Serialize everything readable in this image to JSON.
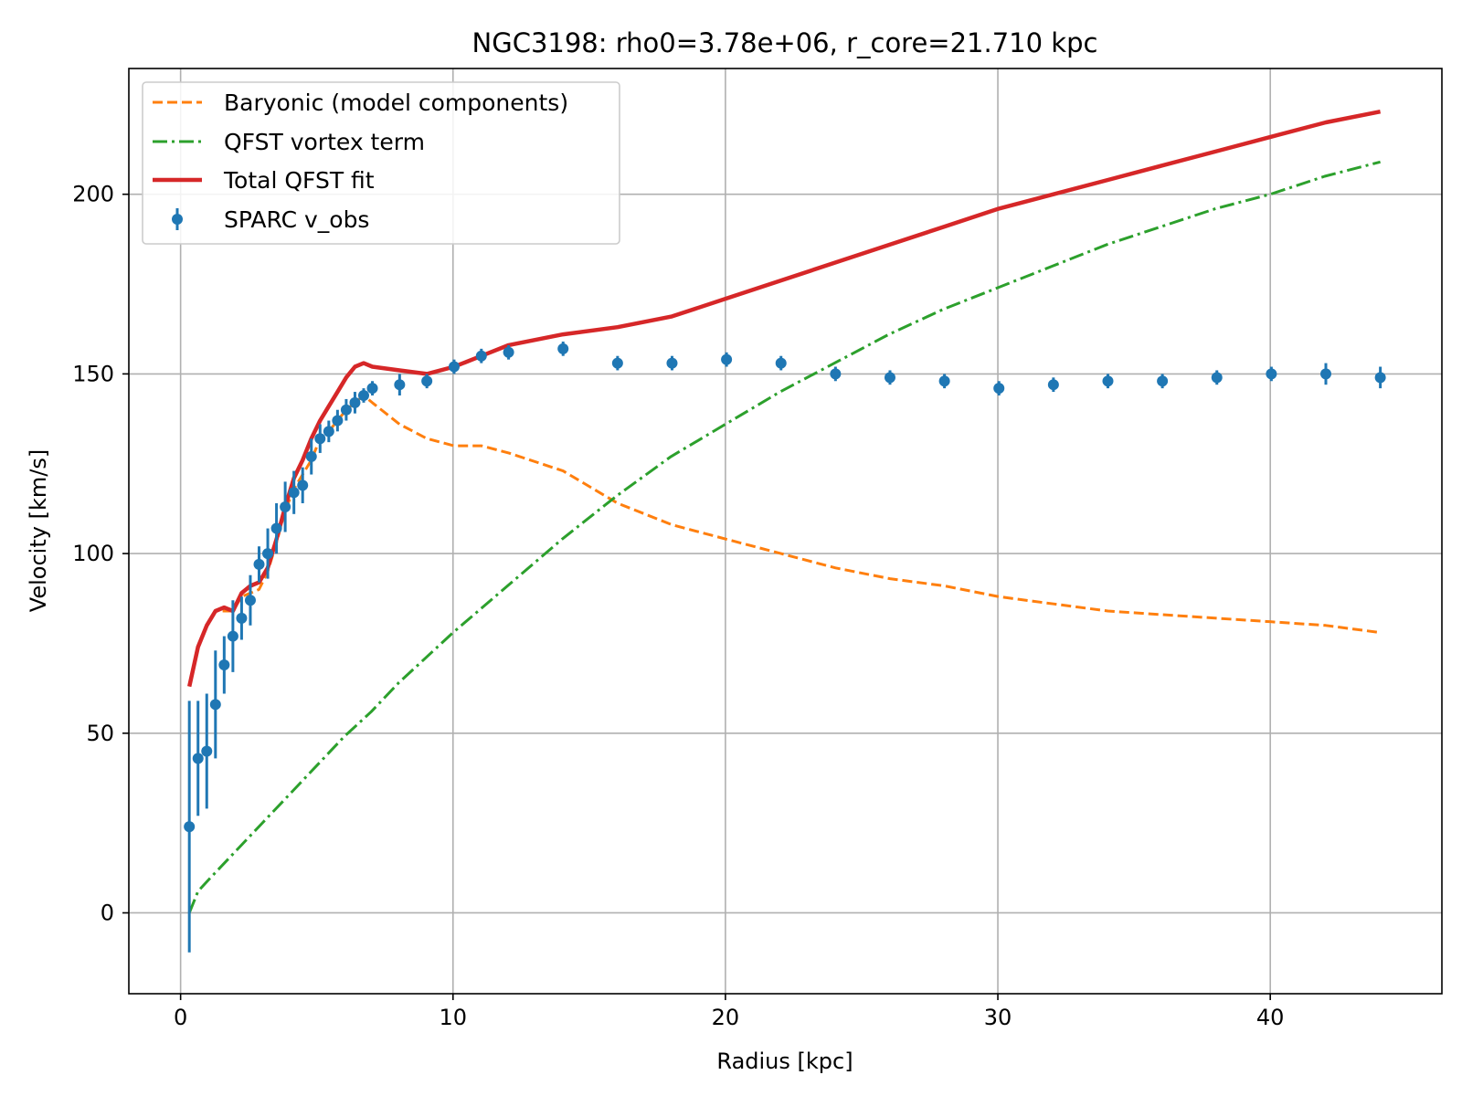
{
  "chart_data": {
    "type": "line",
    "title": "NGC3198: rho0=3.78e+06, r_core=21.710 kpc",
    "xlabel": "Radius [kpc]",
    "ylabel": "Velocity [km/s]",
    "xlim": [
      -1.9,
      46.3
    ],
    "ylim": [
      -22.5,
      235.0
    ],
    "xticks": [
      0,
      10,
      20,
      30,
      40
    ],
    "yticks": [
      0,
      50,
      100,
      150,
      200
    ],
    "grid": true,
    "legend_position": "top-left",
    "colors": {
      "baryonic": "#ff7f0e",
      "vortex": "#2ca02c",
      "total": "#d62728",
      "observed": "#1f77b4",
      "grid": "#b0b0b0"
    },
    "series": [
      {
        "name": "Baryonic (model components)",
        "style": "dashed",
        "x": [
          0.32,
          0.64,
          0.96,
          1.28,
          1.6,
          1.92,
          2.24,
          2.56,
          2.88,
          3.2,
          3.52,
          3.84,
          4.16,
          4.48,
          4.8,
          5.12,
          5.44,
          5.76,
          6.08,
          6.4,
          6.72,
          7.04,
          8.04,
          9.04,
          10.04,
          11.04,
          12.04,
          14.04,
          16.04,
          18.04,
          20.04,
          22.04,
          24.04,
          26.04,
          28.04,
          30.04,
          32.04,
          34.04,
          36.04,
          38.04,
          40.04,
          42.04,
          44.04
        ],
        "y": [
          63,
          74,
          80,
          84,
          84,
          84,
          88,
          89,
          90,
          95,
          103,
          112,
          118,
          122,
          126,
          132,
          134,
          137,
          140,
          142,
          144,
          142,
          136,
          132,
          130,
          130,
          128,
          123,
          114,
          108,
          104,
          100,
          96,
          93,
          91,
          88,
          86,
          84,
          83,
          82,
          81,
          80,
          78
        ]
      },
      {
        "name": "QFST vortex term",
        "style": "dashdot",
        "x": [
          0.32,
          0.64,
          1,
          2,
          3,
          4,
          5,
          6,
          7,
          8,
          9,
          10,
          12,
          14,
          16,
          18,
          20,
          22,
          24,
          26,
          28,
          30,
          32,
          34,
          36,
          38,
          40,
          42,
          44.04
        ],
        "y": [
          0,
          6,
          9,
          17,
          25,
          33,
          41,
          49,
          56,
          64,
          71,
          78,
          91,
          104,
          116,
          127,
          136,
          145,
          153,
          161,
          168,
          174,
          180,
          186,
          191,
          196,
          200,
          205,
          209
        ]
      },
      {
        "name": "Total QFST fit",
        "style": "solid",
        "x": [
          0.32,
          0.64,
          0.96,
          1.28,
          1.6,
          1.92,
          2.24,
          2.56,
          2.88,
          3.2,
          3.52,
          3.84,
          4.16,
          4.48,
          4.8,
          5.12,
          5.44,
          5.76,
          6.08,
          6.4,
          6.72,
          7.04,
          8.04,
          9.04,
          10.04,
          11.04,
          12.04,
          14.04,
          16.04,
          18.04,
          20.04,
          22.04,
          24.04,
          26.04,
          28.04,
          30.04,
          32.04,
          34.04,
          36.04,
          38.04,
          40.04,
          42.04,
          44.04
        ],
        "y": [
          63,
          74,
          80,
          84,
          85,
          84,
          89,
          91,
          92,
          96,
          104,
          113,
          121,
          126,
          132,
          137,
          141,
          145,
          149,
          152,
          153,
          152,
          151,
          150,
          152,
          155,
          158,
          161,
          163,
          166,
          171,
          176,
          181,
          186,
          191,
          196,
          200,
          204,
          208,
          212,
          216,
          220,
          223
        ]
      },
      {
        "name": "SPARC v_obs",
        "style": "errorbar",
        "x": [
          0.32,
          0.64,
          0.96,
          1.28,
          1.6,
          1.92,
          2.24,
          2.56,
          2.88,
          3.2,
          3.52,
          3.84,
          4.16,
          4.48,
          4.8,
          5.12,
          5.44,
          5.76,
          6.08,
          6.4,
          6.72,
          7.04,
          8.04,
          9.04,
          10.04,
          11.04,
          12.04,
          14.04,
          16.04,
          18.04,
          20.04,
          22.04,
          24.04,
          26.04,
          28.04,
          30.04,
          32.04,
          34.04,
          36.04,
          38.04,
          40.04,
          42.04,
          44.04
        ],
        "y": [
          24,
          43,
          45,
          58,
          69,
          77,
          82,
          87,
          97,
          100,
          107,
          113,
          117,
          119,
          127,
          132,
          134,
          137,
          140,
          142,
          144,
          146,
          147,
          148,
          152,
          155,
          156,
          157,
          153,
          153,
          154,
          153,
          150,
          149,
          148,
          146,
          147,
          148,
          148,
          149,
          150,
          150,
          149
        ],
        "yerr": [
          35,
          16,
          16,
          15,
          8,
          10,
          6,
          7,
          5,
          7,
          7,
          7,
          6,
          5,
          5,
          4,
          3,
          3,
          3,
          3,
          2,
          2,
          3,
          2,
          2,
          2,
          2,
          2,
          2,
          2,
          2,
          2,
          2,
          2,
          2,
          2,
          2,
          2,
          2,
          2,
          2,
          3,
          3
        ]
      }
    ]
  }
}
